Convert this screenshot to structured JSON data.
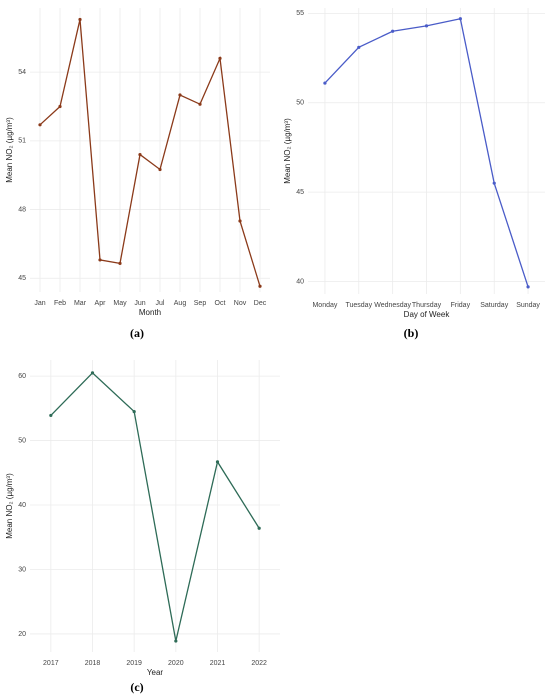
{
  "chart_data": [
    {
      "type": "line",
      "caption": "(a)",
      "xlabel": "Month",
      "ylabel": "Mean NO₂ (µg/m³)",
      "color": "#8b3a1a",
      "categories": [
        "Jan",
        "Feb",
        "Mar",
        "Apr",
        "May",
        "Jun",
        "Jul",
        "Aug",
        "Sep",
        "Oct",
        "Nov",
        "Dec"
      ],
      "values": [
        51.7,
        52.5,
        56.3,
        45.8,
        45.65,
        50.4,
        49.75,
        53.0,
        52.6,
        54.6,
        47.5,
        44.65
      ],
      "ylim": [
        44.4,
        56.8
      ],
      "yticks": [
        45,
        48,
        51,
        54
      ],
      "grid": true
    },
    {
      "type": "line",
      "caption": "(b)",
      "xlabel": "Day of Week",
      "ylabel": "Mean NO₂ (µg/m³)",
      "color": "#4a5cc8",
      "categories": [
        "Monday",
        "Tuesday",
        "Wednesday",
        "Thursday",
        "Friday",
        "Saturday",
        "Sunday"
      ],
      "values": [
        51.1,
        53.1,
        54.0,
        54.3,
        54.7,
        45.5,
        39.7
      ],
      "ylim": [
        39.3,
        55.3
      ],
      "yticks": [
        40,
        45,
        50,
        55
      ],
      "grid": true
    },
    {
      "type": "line",
      "caption": "(c)",
      "xlabel": "Year",
      "ylabel": "Mean NO₂ (µg/m³)",
      "color": "#2e6b57",
      "categories": [
        "2017",
        "2018",
        "2019",
        "2020",
        "2021",
        "2022"
      ],
      "values": [
        53.9,
        60.5,
        54.5,
        18.9,
        46.7,
        36.4
      ],
      "ylim": [
        17.2,
        62.5
      ],
      "yticks": [
        20,
        30,
        40,
        50,
        60
      ],
      "grid": true
    }
  ]
}
